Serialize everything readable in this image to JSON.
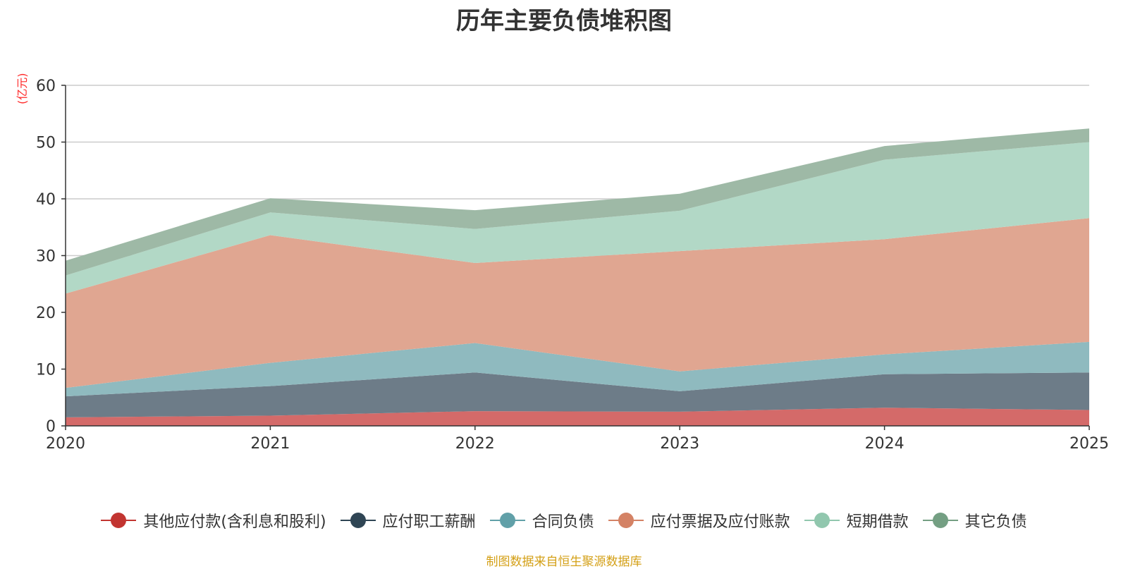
{
  "chart_data": {
    "type": "area",
    "stacked": true,
    "title": "历年主要负债堆积图",
    "ylabel": "(亿元)",
    "xlabel": "",
    "categories": [
      "2020",
      "2021",
      "2022",
      "2023",
      "2024",
      "2025"
    ],
    "ylim": [
      0,
      60
    ],
    "yticks": [
      0,
      10,
      20,
      30,
      40,
      50,
      60
    ],
    "grid": true,
    "legend_position": "bottom",
    "series": [
      {
        "name": "其他应付款(含利息和股利)",
        "color": "#c23531",
        "fill": "#d46a69",
        "values": [
          1.5,
          1.8,
          2.6,
          2.5,
          3.2,
          2.8
        ]
      },
      {
        "name": "应付职工薪酬",
        "color": "#2f4554",
        "fill": "#6d7c88",
        "values": [
          3.7,
          5.2,
          6.8,
          3.6,
          5.9,
          6.6
        ]
      },
      {
        "name": "合同负债",
        "color": "#61a0a8",
        "fill": "#8fbabf",
        "values": [
          1.5,
          4.1,
          5.2,
          3.5,
          3.5,
          5.4
        ]
      },
      {
        "name": "应付票据及应付账款",
        "color": "#d48265",
        "fill": "#e0a691",
        "values": [
          16.6,
          22.5,
          14.1,
          21.2,
          20.3,
          21.8
        ]
      },
      {
        "name": "短期借款",
        "color": "#91c7ae",
        "fill": "#b2d8c6",
        "values": [
          3.2,
          4.0,
          6.0,
          7.1,
          14.0,
          13.4
        ]
      },
      {
        "name": "其它负债",
        "color": "#749f83",
        "fill": "#9eb9a6",
        "values": [
          2.6,
          2.5,
          3.3,
          3.0,
          2.4,
          2.4
        ]
      }
    ]
  },
  "source_text": "制图数据来自恒生聚源数据库"
}
